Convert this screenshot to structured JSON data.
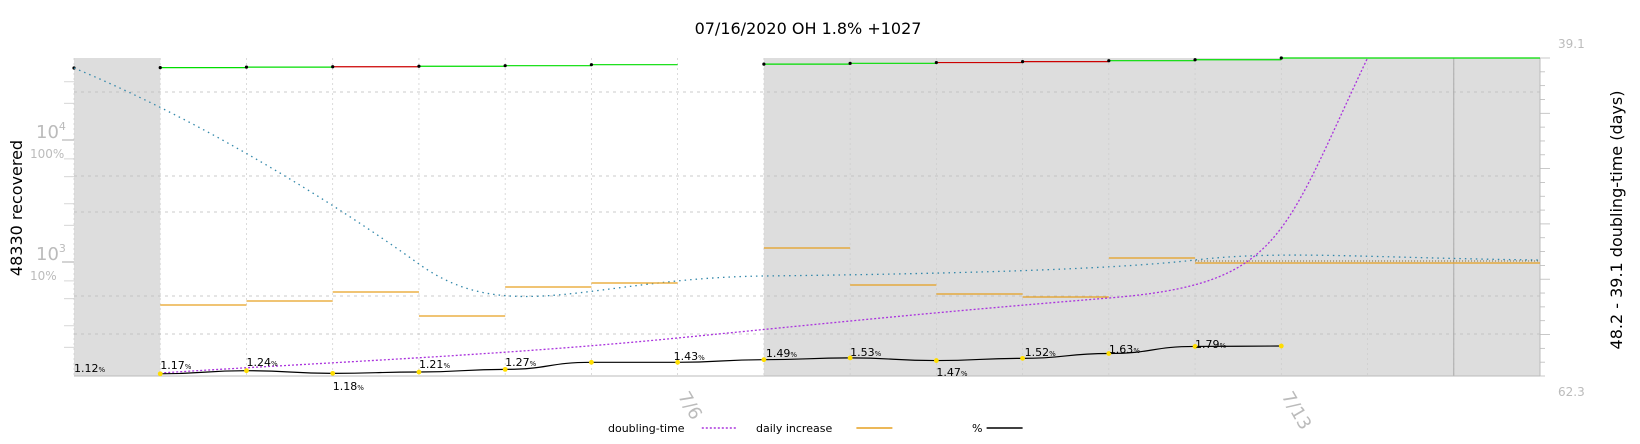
{
  "chart_data": {
    "type": "line",
    "title": "07/16/2020 OH 1.8% +1027",
    "ylabel_left": "48330 recovered",
    "ylabel_right": "48.2 - 39.1 doubling-time (days)",
    "right_axis": {
      "top_label": "39.1",
      "bottom_label": "62.3"
    },
    "log_ticks": [
      {
        "label": "10",
        "exp": "4",
        "pct": "100%"
      },
      {
        "label": "10",
        "exp": "3",
        "pct": "10%"
      }
    ],
    "x_tick_labels": [
      "7/6",
      "7/13"
    ],
    "days": [
      "6/29",
      "6/30",
      "7/1",
      "7/2",
      "7/3",
      "7/4",
      "7/5",
      "7/6",
      "7/7",
      "7/8",
      "7/9",
      "7/10",
      "7/11",
      "7/12",
      "7/13",
      "7/14",
      "7/15",
      "7/16"
    ],
    "weekend_shading": [
      {
        "from": "6/29",
        "to": "6/30"
      },
      {
        "from": "7/7",
        "to": "7/16"
      }
    ],
    "series": [
      {
        "name": "%",
        "color": "#000000",
        "x": [
          "6/29",
          "6/30",
          "7/1",
          "7/2",
          "7/3",
          "7/4",
          "7/5",
          "7/6",
          "7/7",
          "7/8",
          "7/9",
          "7/10",
          "7/11",
          "7/12",
          "7/13",
          "7/14",
          "7/15"
        ],
        "values": [
          1.12,
          1.17,
          1.24,
          1.18,
          1.21,
          1.27,
          1.43,
          1.43,
          1.49,
          1.53,
          1.47,
          1.52,
          1.63,
          1.79,
          1.8,
          1.8,
          1.8
        ],
        "labels": [
          "1.12",
          "1.17",
          "1.24",
          "1.18",
          "1.21",
          "1.27",
          "",
          "1.43",
          "1.49",
          "1.53",
          "1.47",
          "1.52",
          "1.63",
          "1.79",
          "",
          "",
          ""
        ]
      },
      {
        "name": "daily increase",
        "color": "#e6a020",
        "values": [
          430,
          450,
          510,
          350,
          590,
          640,
          1280,
          650,
          520,
          510,
          1050,
          990
        ]
      },
      {
        "name": "doubling-time",
        "color": "#aa33dd",
        "values": [
          62.3,
          61.5,
          60.8,
          60.1,
          59.0,
          57.6,
          55.8,
          54.0,
          52.6,
          51.0,
          48.5,
          39.1
        ]
      },
      {
        "name": "recovered",
        "color": "#00cc00",
        "values": [
          36800,
          37200,
          37700,
          38100,
          38600,
          39200,
          40300,
          40900,
          41800,
          42700,
          43800,
          44900,
          46100,
          48330
        ]
      }
    ],
    "grid": true
  },
  "legend": [
    {
      "name": "doubling-time",
      "color": "#aa33dd",
      "style": "dotted"
    },
    {
      "name": "daily increase",
      "color": "#e6a020",
      "style": "solid"
    },
    {
      "name": "%",
      "color": "#000000",
      "style": "solid"
    }
  ]
}
